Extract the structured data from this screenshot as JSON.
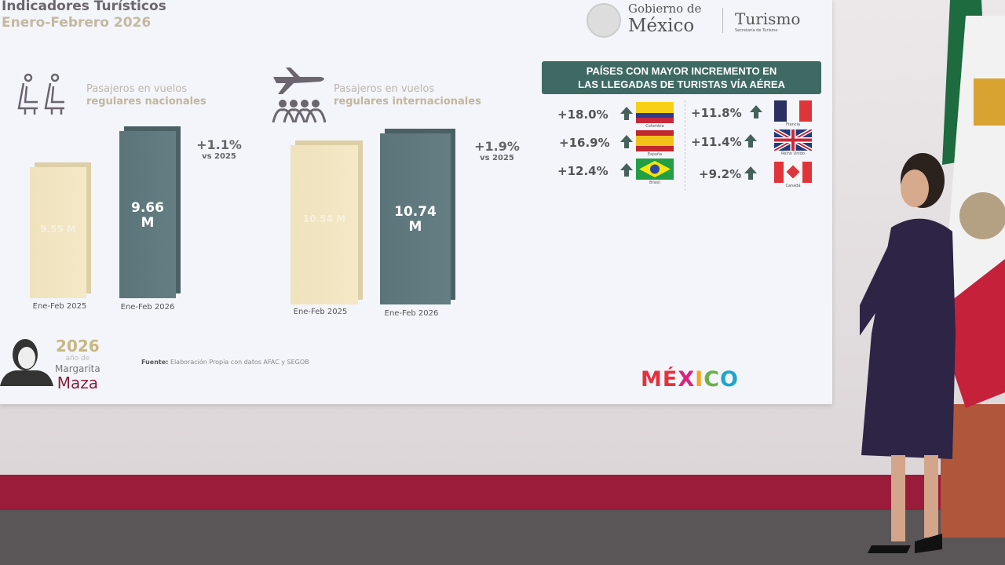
{
  "header": {
    "title": "Indicadores Turísticos",
    "subtitle": "Enero-Febrero 2026"
  },
  "logos": {
    "gob_line1": "Gobierno de",
    "gob_line2": "México",
    "turismo": "Turismo",
    "turismo_sub": "Secretaría de Turismo",
    "mexico_brand": "MÉXICO",
    "year_logo": "2026",
    "year_logo_sub": "año de",
    "year_logo_name1": "Margarita",
    "year_logo_name2": "Maza"
  },
  "chart_data": [
    {
      "type": "bar",
      "title_line1": "Pasajeros en vuelos",
      "title_line2": "regulares nacionales",
      "icon": "airplane-seats-icon",
      "categories": [
        "Ene-Feb 2025",
        "Ene-Feb 2026"
      ],
      "values": [
        9.55,
        9.66
      ],
      "value_labels": [
        "9.55 M",
        "9.66 M"
      ],
      "unit": "M",
      "change": "+1.1%",
      "change_ref": "vs 2025",
      "colors": [
        "#f1e4c0",
        "#5f787d"
      ]
    },
    {
      "type": "bar",
      "title_line1": "Pasajeros en vuelos",
      "title_line2": "regulares internacionales",
      "icon": "airplane-people-icon",
      "categories": [
        "Ene-Feb 2025",
        "Ene-Feb 2026"
      ],
      "values": [
        10.54,
        10.74
      ],
      "value_labels": [
        "10.54 M",
        "10.74 M"
      ],
      "unit": "M",
      "change": "+1.9%",
      "change_ref": "vs 2025",
      "colors": [
        "#f1e4c0",
        "#5f787d"
      ]
    },
    {
      "type": "table",
      "title": "PAÍSES CON MAYOR INCREMENTO EN LAS LLEGADAS DE TURISTAS VÍA AÉREA",
      "title_line1": "PAÍSES CON MAYOR INCREMENTO EN",
      "title_line2": "LAS LLEGADAS DE TURISTAS VÍA AÉREA",
      "rows": [
        {
          "country": "Colombia",
          "change": "+18.0%"
        },
        {
          "country": "España",
          "change": "+16.9%"
        },
        {
          "country": "Brasil",
          "change": "+12.4%"
        },
        {
          "country": "Francia",
          "change": "+11.8%"
        },
        {
          "country": "Reino Unido",
          "change": "+11.4%"
        },
        {
          "country": "Canadá",
          "change": "+9.2%"
        }
      ],
      "accent": "#3f6a63"
    }
  ],
  "footer": {
    "source_label": "Fuente:",
    "source_text": "Elaboración Propia con datos AFAC y SEGOB"
  }
}
